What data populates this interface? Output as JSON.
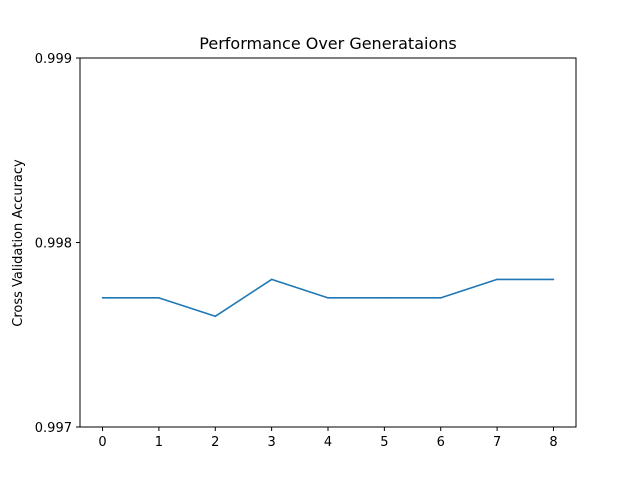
{
  "chart_data": {
    "type": "line",
    "title": "Performance Over Generataions",
    "xlabel": "",
    "ylabel": "Cross Validation Accuracy",
    "x": [
      0,
      1,
      2,
      3,
      4,
      5,
      6,
      7,
      8
    ],
    "xlim": [
      -0.4,
      8.4
    ],
    "ylim": [
      0.997,
      0.999
    ],
    "xticks": [
      "0",
      "1",
      "2",
      "3",
      "4",
      "5",
      "6",
      "7",
      "8"
    ],
    "yticks": [
      {
        "value": 0.997,
        "label": "0.997"
      },
      {
        "value": 0.998,
        "label": "0.998"
      },
      {
        "value": 0.999,
        "label": "0.999"
      }
    ],
    "grid": false,
    "legend": "none",
    "series": [
      {
        "color": "#1f77b4",
        "values": [
          0.9977,
          0.9977,
          0.9976,
          0.9978,
          0.9977,
          0.9977,
          0.9977,
          0.9978,
          0.9978
        ]
      }
    ]
  }
}
